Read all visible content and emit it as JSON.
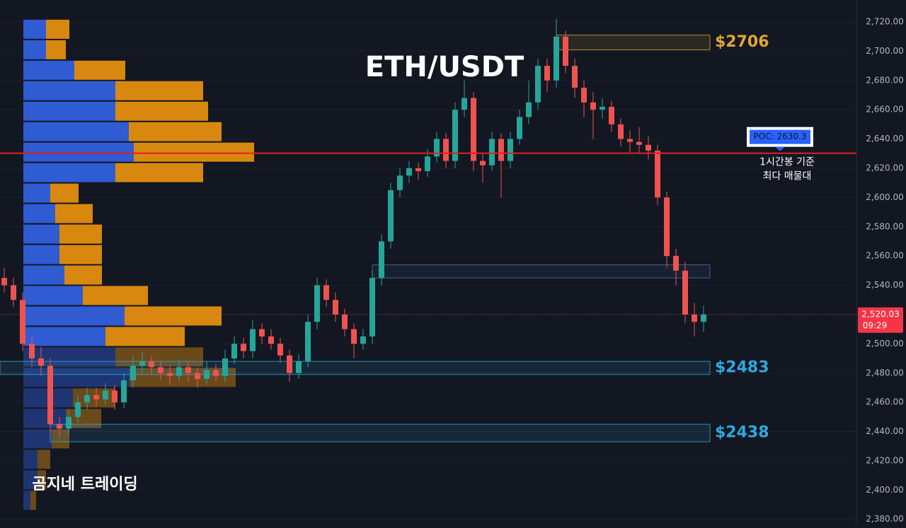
{
  "chart_data": {
    "type": "candlestick",
    "title": "ETH/USDT",
    "watermark": "곰지네 트레이딩",
    "up_color": "#26a69a",
    "down_color": "#ef5350",
    "ylim": [
      2376,
      2735
    ],
    "yticks": [
      {
        "value": 2380,
        "label": "2,380.00"
      },
      {
        "value": 2400,
        "label": "2,400.00"
      },
      {
        "value": 2420,
        "label": "2,420.00"
      },
      {
        "value": 2440,
        "label": "2,440.00"
      },
      {
        "value": 2460,
        "label": "2,460.00"
      },
      {
        "value": 2480,
        "label": "2,480.00"
      },
      {
        "value": 2500,
        "label": "2,500.00"
      },
      {
        "value": 2520,
        "label": "2,520.00"
      },
      {
        "value": 2540,
        "label": "2,540.00"
      },
      {
        "value": 2560,
        "label": "2,560.00"
      },
      {
        "value": 2580,
        "label": "2,580.00"
      },
      {
        "value": 2600,
        "label": "2,600.00"
      },
      {
        "value": 2620,
        "label": "2,620.00"
      },
      {
        "value": 2640,
        "label": "2,640.00"
      },
      {
        "value": 2660,
        "label": "2,660.00"
      },
      {
        "value": 2680,
        "label": "2,680.00"
      },
      {
        "value": 2700,
        "label": "2,700.00"
      },
      {
        "value": 2720,
        "label": "2,720.00"
      }
    ],
    "grid": true,
    "candles": [
      [
        2545,
        2552,
        2535,
        2540
      ],
      [
        2540,
        2545,
        2525,
        2530
      ],
      [
        2530,
        2535,
        2495,
        2500
      ],
      [
        2500,
        2505,
        2484,
        2490
      ],
      [
        2490,
        2498,
        2478,
        2485
      ],
      [
        2485,
        2490,
        2438,
        2445
      ],
      [
        2445,
        2450,
        2436,
        2442
      ],
      [
        2442,
        2455,
        2438,
        2450
      ],
      [
        2450,
        2465,
        2446,
        2460
      ],
      [
        2460,
        2470,
        2455,
        2465
      ],
      [
        2465,
        2470,
        2457,
        2462
      ],
      [
        2462,
        2473,
        2458,
        2468
      ],
      [
        2468,
        2472,
        2455,
        2460
      ],
      [
        2460,
        2480,
        2456,
        2475
      ],
      [
        2475,
        2492,
        2470,
        2485
      ],
      [
        2485,
        2494,
        2480,
        2488
      ],
      [
        2488,
        2492,
        2479,
        2484
      ],
      [
        2484,
        2488,
        2475,
        2480
      ],
      [
        2480,
        2485,
        2472,
        2478
      ],
      [
        2478,
        2489,
        2474,
        2484
      ],
      [
        2484,
        2488,
        2474,
        2480
      ],
      [
        2480,
        2484,
        2470,
        2476
      ],
      [
        2476,
        2488,
        2472,
        2482
      ],
      [
        2482,
        2486,
        2474,
        2478
      ],
      [
        2478,
        2496,
        2474,
        2490
      ],
      [
        2490,
        2505,
        2486,
        2500
      ],
      [
        2500,
        2504,
        2490,
        2495
      ],
      [
        2495,
        2516,
        2490,
        2510
      ],
      [
        2510,
        2514,
        2500,
        2505
      ],
      [
        2505,
        2510,
        2496,
        2500
      ],
      [
        2500,
        2504,
        2487,
        2492
      ],
      [
        2492,
        2496,
        2474,
        2480
      ],
      [
        2480,
        2493,
        2476,
        2488
      ],
      [
        2488,
        2520,
        2484,
        2515
      ],
      [
        2515,
        2545,
        2510,
        2540
      ],
      [
        2540,
        2544,
        2525,
        2530
      ],
      [
        2530,
        2535,
        2515,
        2520
      ],
      [
        2520,
        2524,
        2505,
        2510
      ],
      [
        2510,
        2514,
        2490,
        2500
      ],
      [
        2500,
        2510,
        2496,
        2505
      ],
      [
        2505,
        2550,
        2500,
        2545
      ],
      [
        2545,
        2575,
        2540,
        2570
      ],
      [
        2570,
        2610,
        2565,
        2605
      ],
      [
        2605,
        2620,
        2600,
        2615
      ],
      [
        2615,
        2625,
        2610,
        2620
      ],
      [
        2620,
        2624,
        2612,
        2618
      ],
      [
        2618,
        2633,
        2614,
        2628
      ],
      [
        2628,
        2645,
        2624,
        2640
      ],
      [
        2640,
        2644,
        2620,
        2625
      ],
      [
        2625,
        2665,
        2620,
        2660
      ],
      [
        2660,
        2680,
        2655,
        2668
      ],
      [
        2668,
        2672,
        2618,
        2625
      ],
      [
        2625,
        2630,
        2610,
        2622
      ],
      [
        2622,
        2645,
        2618,
        2640
      ],
      [
        2640,
        2644,
        2600,
        2625
      ],
      [
        2625,
        2645,
        2620,
        2640
      ],
      [
        2640,
        2660,
        2636,
        2655
      ],
      [
        2655,
        2680,
        2650,
        2665
      ],
      [
        2665,
        2695,
        2660,
        2690
      ],
      [
        2690,
        2695,
        2672,
        2680
      ],
      [
        2680,
        2722,
        2675,
        2710
      ],
      [
        2710,
        2714,
        2685,
        2690
      ],
      [
        2690,
        2695,
        2668,
        2675
      ],
      [
        2675,
        2680,
        2655,
        2665
      ],
      [
        2665,
        2672,
        2640,
        2660
      ],
      [
        2660,
        2668,
        2654,
        2662
      ],
      [
        2662,
        2666,
        2645,
        2650
      ],
      [
        2650,
        2654,
        2635,
        2640
      ],
      [
        2640,
        2646,
        2630,
        2638
      ],
      [
        2638,
        2648,
        2630,
        2636
      ],
      [
        2636,
        2642,
        2626,
        2632
      ],
      [
        2632,
        2636,
        2595,
        2600
      ],
      [
        2600,
        2604,
        2552,
        2560
      ],
      [
        2560,
        2565,
        2540,
        2550
      ],
      [
        2550,
        2556,
        2514,
        2520
      ],
      [
        2520,
        2528,
        2505,
        2515
      ],
      [
        2515,
        2526,
        2508,
        2520.03
      ]
    ],
    "volume_profile": {
      "buy_color": "#2f5bd3",
      "sell_color": "#d9880f",
      "prices": [
        2715,
        2701,
        2687,
        2673,
        2659,
        2645,
        2631,
        2617,
        2603,
        2589,
        2575,
        2561,
        2547,
        2533,
        2519,
        2505,
        2491,
        2477,
        2463,
        2449,
        2435,
        2421,
        2407,
        2393
      ],
      "buy": [
        32,
        32,
        72,
        130,
        130,
        149,
        156,
        130,
        38,
        45,
        51,
        51,
        58,
        84,
        143,
        116,
        130,
        150,
        70,
        60,
        40,
        20,
        20,
        10
      ],
      "sell": [
        33,
        28,
        72,
        124,
        131,
        131,
        170,
        124,
        40,
        53,
        60,
        60,
        53,
        92,
        137,
        112,
        124,
        150,
        60,
        50,
        25,
        18,
        12,
        8
      ]
    },
    "zones": [
      {
        "label": "$2706",
        "top": 2711,
        "bottom": 2701,
        "from": 60,
        "color": "#e0a82e"
      },
      {
        "top": 2554,
        "bottom": 2545,
        "from": 40,
        "color": "#4a6fa5"
      },
      {
        "label": "$2483",
        "top": 2488,
        "bottom": 2479,
        "from": 0,
        "color": "#2fa8e0"
      },
      {
        "label": "$2438",
        "top": 2445,
        "bottom": 2433,
        "from": 5,
        "color": "#2fa8e0"
      }
    ],
    "poc": {
      "value": 2630.3,
      "label": "POC: 2630.3",
      "note": [
        "1시간봉 기준",
        "최다 매물대"
      ],
      "color": "#e02020"
    },
    "current_price": 2520.03,
    "current_price_label": "2,520.03",
    "countdown": "09:29"
  }
}
